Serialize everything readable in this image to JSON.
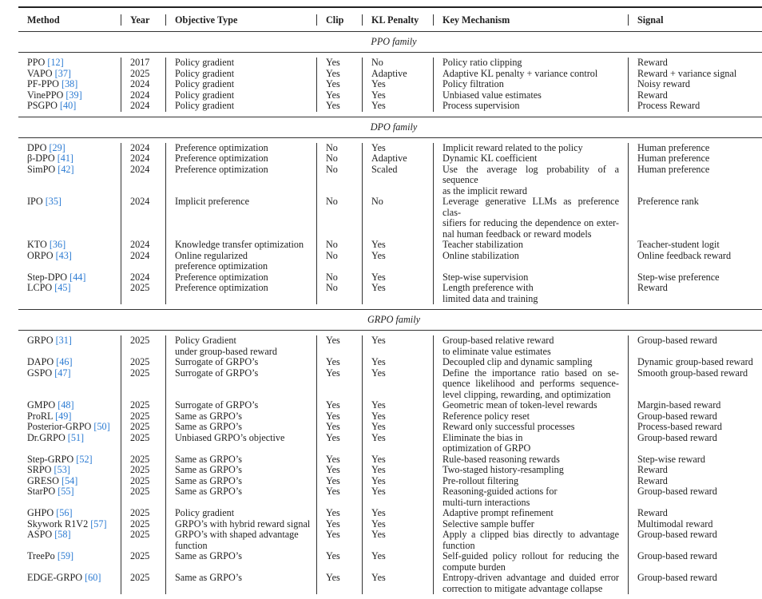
{
  "headers": [
    "Method",
    "Year",
    "Objective Type",
    "Clip",
    "KL Penalty",
    "Key Mechanism",
    "Signal"
  ],
  "colors": {
    "citation": "#2a7ad2",
    "text": "#222222"
  },
  "sections": [
    {
      "title": "PPO family",
      "rows": [
        {
          "method": "PPO",
          "ref": "[12]",
          "year": "2017",
          "objective": [
            "Policy gradient"
          ],
          "clip": "Yes",
          "kl": "No",
          "mechanism": [
            "Policy ratio clipping"
          ],
          "signal": [
            "Reward"
          ]
        },
        {
          "method": "VAPO",
          "ref": "[37]",
          "year": "2025",
          "objective": [
            "Policy gradient"
          ],
          "clip": "Yes",
          "kl": "Adaptive",
          "mechanism": [
            "Adaptive KL penalty + variance control"
          ],
          "signal": [
            "Reward + variance signal"
          ]
        },
        {
          "method": "PF-PPO",
          "ref": "[38]",
          "year": "2024",
          "objective": [
            "Policy gradient"
          ],
          "clip": "Yes",
          "kl": "Yes",
          "mechanism": [
            "Policy filtration"
          ],
          "signal": [
            "Noisy reward"
          ]
        },
        {
          "method": "VinePPO",
          "ref": "[39]",
          "year": "2024",
          "objective": [
            "Policy gradient"
          ],
          "clip": "Yes",
          "kl": "Yes",
          "mechanism": [
            "Unbiased value estimates"
          ],
          "signal": [
            "Reward"
          ]
        },
        {
          "method": "PSGPO",
          "ref": "[40]",
          "year": "2024",
          "objective": [
            "Policy gradient"
          ],
          "clip": "Yes",
          "kl": "Yes",
          "mechanism": [
            "Process supervision"
          ],
          "signal": [
            "Process Reward"
          ]
        }
      ]
    },
    {
      "title": "DPO family",
      "rows": [
        {
          "method": "DPO",
          "ref": "[29]",
          "year": "2024",
          "objective": [
            "Preference optimization"
          ],
          "clip": "No",
          "kl": "Yes",
          "mechanism": [
            "Implicit reward related to the policy"
          ],
          "signal": [
            "Human preference"
          ]
        },
        {
          "method": "β-DPO",
          "ref": "[41]",
          "year": "2024",
          "objective": [
            "Preference optimization"
          ],
          "clip": "No",
          "kl": "Adaptive",
          "mechanism": [
            "Dynamic KL coefficient"
          ],
          "signal": [
            "Human preference"
          ]
        },
        {
          "method": "SimPO",
          "ref": "[42]",
          "year": "2024",
          "objective": [
            "Preference optimization"
          ],
          "clip": "No",
          "kl": "Scaled",
          "mechanism": [
            "Use the average log probability of a sequence",
            "as the implicit reward"
          ],
          "signal": [
            "Human preference"
          ]
        },
        {
          "method": "IPO",
          "ref": "[35]",
          "year": "2024",
          "objective": [
            "Implicit preference"
          ],
          "clip": "No",
          "kl": "No",
          "mechanism": [
            "Leverage generative LLMs as preference clas-",
            "sifiers for reducing the dependence on exter-",
            "nal human feedback or reward models"
          ],
          "signal": [
            "Preference rank"
          ]
        },
        {
          "method": "KTO",
          "ref": "[36]",
          "year": "2024",
          "objective": [
            "Knowledge transfer optimization"
          ],
          "clip": "No",
          "kl": "Yes",
          "mechanism": [
            "Teacher stabilization"
          ],
          "signal": [
            "Teacher-student logit"
          ]
        },
        {
          "method": "ORPO",
          "ref": "[43]",
          "year": "2024",
          "objective": [
            "Online regularized",
            "preference optimization"
          ],
          "clip": "No",
          "kl": "Yes",
          "mechanism": [
            "Online stabilization"
          ],
          "signal": [
            "Online feedback reward"
          ]
        },
        {
          "method": "Step-DPO",
          "ref": "[44]",
          "year": "2024",
          "objective": [
            "Preference optimization"
          ],
          "clip": "No",
          "kl": "Yes",
          "mechanism": [
            "Step-wise supervision"
          ],
          "signal": [
            "Step-wise preference"
          ]
        },
        {
          "method": "LCPO",
          "ref": "[45]",
          "year": "2025",
          "objective": [
            "Preference optimization"
          ],
          "clip": "No",
          "kl": "Yes",
          "mechanism": [
            "Length preference with",
            "limited data and training"
          ],
          "signal": [
            "Reward"
          ]
        }
      ]
    },
    {
      "title": "GRPO family",
      "rows": [
        {
          "method": "GRPO",
          "ref": "[31]",
          "year": "2025",
          "objective": [
            "Policy Gradient",
            "under group-based reward"
          ],
          "clip": "Yes",
          "kl": "Yes",
          "mechanism": [
            "Group-based relative reward",
            "to eliminate value estimates"
          ],
          "signal": [
            "Group-based reward"
          ]
        },
        {
          "method": "DAPO",
          "ref": "[46]",
          "year": "2025",
          "objective": [
            "Surrogate of GRPO’s"
          ],
          "clip": "Yes",
          "kl": "Yes",
          "mechanism": [
            "Decoupled clip and dynamic sampling"
          ],
          "signal": [
            "Dynamic group-based reward"
          ]
        },
        {
          "method": "GSPO",
          "ref": "[47]",
          "year": "2025",
          "objective": [
            "Surrogate of GRPO’s"
          ],
          "clip": "Yes",
          "kl": "Yes",
          "mechanism": [
            "Define the importance ratio based on se-",
            "quence likelihood and performs sequence-",
            "level clipping, rewarding, and optimization"
          ],
          "signal": [
            "Smooth group-based reward"
          ]
        },
        {
          "method": "GMPO",
          "ref": "[48]",
          "year": "2025",
          "objective": [
            "Surrogate of GRPO’s"
          ],
          "clip": "Yes",
          "kl": "Yes",
          "mechanism": [
            "Geometric mean of token-level rewards"
          ],
          "signal": [
            "Margin-based reward"
          ]
        },
        {
          "method": "ProRL",
          "ref": "[49]",
          "year": "2025",
          "objective": [
            "Same as GRPO’s"
          ],
          "clip": "Yes",
          "kl": "Yes",
          "mechanism": [
            "Reference policy reset"
          ],
          "signal": [
            "Group-based reward"
          ]
        },
        {
          "method": "Posterior-GRPO",
          "ref": "[50]",
          "year": "2025",
          "objective": [
            "Same as GRPO’s"
          ],
          "clip": "Yes",
          "kl": "Yes",
          "mechanism": [
            "Reward only successful processes"
          ],
          "signal": [
            "Process-based reward"
          ]
        },
        {
          "method": "Dr.GRPO",
          "ref": "[51]",
          "year": "2025",
          "objective": [
            "Unbiased GRPO’s objective"
          ],
          "clip": "Yes",
          "kl": "Yes",
          "mechanism": [
            "Eliminate the bias in",
            "optimization of GRPO"
          ],
          "signal": [
            "Group-based reward"
          ]
        },
        {
          "method": "Step-GRPO",
          "ref": "[52]",
          "year": "2025",
          "objective": [
            "Same as GRPO’s"
          ],
          "clip": "Yes",
          "kl": "Yes",
          "mechanism": [
            "Rule-based reasoning rewards"
          ],
          "signal": [
            "Step-wise reward"
          ]
        },
        {
          "method": "SRPO",
          "ref": "[53]",
          "year": "2025",
          "objective": [
            "Same as GRPO’s"
          ],
          "clip": "Yes",
          "kl": "Yes",
          "mechanism": [
            "Two-staged history-resampling"
          ],
          "signal": [
            "Reward"
          ]
        },
        {
          "method": "GRESO",
          "ref": "[54]",
          "year": "2025",
          "objective": [
            "Same as GRPO’s"
          ],
          "clip": "Yes",
          "kl": "Yes",
          "mechanism": [
            "Pre-rollout filtering"
          ],
          "signal": [
            "Reward"
          ]
        },
        {
          "method": "StarPO",
          "ref": "[55]",
          "year": "2025",
          "objective": [
            "Same as GRPO’s"
          ],
          "clip": "Yes",
          "kl": "Yes",
          "mechanism": [
            "Reasoning-guided actions for",
            "multi-turn interactions"
          ],
          "signal": [
            "Group-based reward"
          ]
        },
        {
          "method": "GHPO",
          "ref": "[56]",
          "year": "2025",
          "objective": [
            "Policy gradient"
          ],
          "clip": "Yes",
          "kl": "Yes",
          "mechanism": [
            "Adaptive prompt refinement"
          ],
          "signal": [
            "Reward"
          ]
        },
        {
          "method": "Skywork R1V2",
          "ref": "[57]",
          "year": "2025",
          "objective": [
            "GRPO’s with hybrid reward signal"
          ],
          "clip": "Yes",
          "kl": "Yes",
          "mechanism": [
            "Selective sample buffer"
          ],
          "signal": [
            "Multimodal reward"
          ]
        },
        {
          "method": "ASPO",
          "ref": "[58]",
          "year": "2025",
          "objective": [
            "GRPO’s with shaped advantage",
            "function"
          ],
          "clip": "Yes",
          "kl": "Yes",
          "mechanism": [
            "Apply a clipped bias directly to advantage",
            "function"
          ],
          "signal": [
            "Group-based reward"
          ]
        },
        {
          "method": "TreePo",
          "ref": "[59]",
          "year": "2025",
          "objective": [
            "Same as GRPO’s"
          ],
          "clip": "Yes",
          "kl": "Yes",
          "mechanism": [
            "Self-guided policy rollout for reducing the",
            "compute burden"
          ],
          "signal": [
            "Group-based reward"
          ]
        },
        {
          "method": "EDGE-GRPO",
          "ref": "[60]",
          "year": "2025",
          "objective": [
            "Same as GRPO’s"
          ],
          "clip": "Yes",
          "kl": "Yes",
          "mechanism": [
            "Entropy-driven advantage and duided error",
            "correction to mitigate advantage collapse"
          ],
          "signal": [
            "Group-based reward"
          ]
        }
      ]
    }
  ]
}
